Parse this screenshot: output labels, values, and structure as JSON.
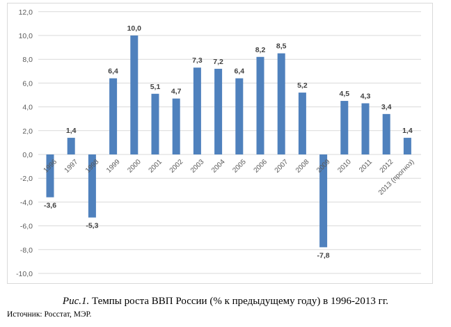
{
  "chart_data": {
    "type": "bar",
    "categories": [
      "1996",
      "1997",
      "1998",
      "1999",
      "2000",
      "2001",
      "2002",
      "2003",
      "2004",
      "2005",
      "2006",
      "2007",
      "2008",
      "2009",
      "2010",
      "2011",
      "2012",
      "2013 (прогноз)"
    ],
    "values": [
      -3.6,
      1.4,
      -5.3,
      6.4,
      10.0,
      5.1,
      4.7,
      7.3,
      7.2,
      6.4,
      8.2,
      8.5,
      5.2,
      -7.8,
      4.5,
      4.3,
      3.4,
      1.4
    ],
    "data_labels": [
      "-3,6",
      "1,4",
      "-5,3",
      "6,4",
      "10,0",
      "5,1",
      "4,7",
      "7,3",
      "7,2",
      "6,4",
      "8,2",
      "8,5",
      "5,2",
      "-7,8",
      "4,5",
      "4,3",
      "3,4",
      "1,4"
    ],
    "yticks": [
      "12,0",
      "10,0",
      "8,0",
      "6,0",
      "4,0",
      "2,0",
      "0,0",
      "-2,0",
      "-4,0",
      "-6,0",
      "-8,0",
      "-10,0"
    ],
    "ylim": [
      -10,
      12
    ],
    "grid": true,
    "bar_color": "#4f81bd",
    "title": "",
    "xlabel": "",
    "ylabel": ""
  },
  "caption": {
    "prefix": "Рис.1.",
    "text": " Темпы роста ВВП России (% к предыдущему году) в 1996-2013 гг."
  },
  "source": "Источник: Росстат, МЭР."
}
